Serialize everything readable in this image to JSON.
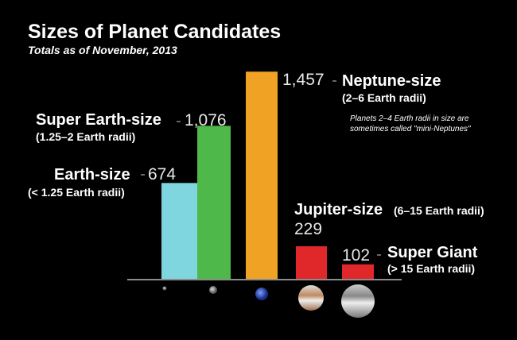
{
  "chart_data": {
    "type": "bar",
    "title": "Sizes of Planet Candidates",
    "subtitle": "Totals as of November, 2013",
    "categories": [
      "Earth-size",
      "Super Earth-size",
      "Neptune-size",
      "Jupiter-size",
      "Super Giant"
    ],
    "sublabels": [
      "(< 1.25 Earth radii)",
      "(1.25–2 Earth radii)",
      "(2–6 Earth radii)",
      "(6–15 Earth radii)",
      "(> 15 Earth radii)"
    ],
    "values": [
      674,
      1076,
      1457,
      229,
      102
    ],
    "value_labels": [
      "674",
      "1,076",
      "1,457",
      "229",
      "102"
    ],
    "colors": [
      "#7fd6df",
      "#4fb84a",
      "#f0a224",
      "#e0282b",
      "#e0282b"
    ],
    "note": [
      "Planets 2–4 Earth radii in size are",
      "sometimes called \"mini-Neptunes\""
    ]
  }
}
